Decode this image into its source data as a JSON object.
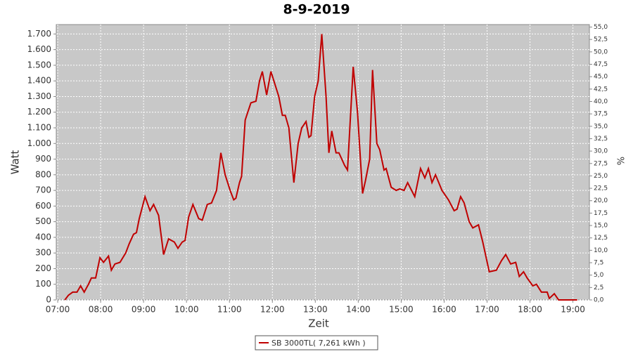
{
  "chart_data": {
    "type": "line",
    "title": "8-9-2019",
    "x_label": "Zeit",
    "y_label": "Watt",
    "y2_label": "%",
    "x": [
      "07:10",
      "07:15",
      "07:21",
      "07:27",
      "07:32",
      "07:37",
      "07:43",
      "07:47",
      "07:53",
      "07:59",
      "08:04",
      "08:11",
      "08:15",
      "08:20",
      "08:27",
      "08:35",
      "08:40",
      "08:46",
      "08:50",
      "08:54",
      "09:02",
      "09:09",
      "09:14",
      "09:21",
      "09:28",
      "09:35",
      "09:43",
      "09:48",
      "09:54",
      "09:58",
      "10:03",
      "10:09",
      "10:17",
      "10:22",
      "10:29",
      "10:35",
      "10:42",
      "10:48",
      "10:54",
      "11:01",
      "11:06",
      "11:09",
      "11:14",
      "11:17",
      "11:22",
      "11:30",
      "11:37",
      "11:42",
      "11:46",
      "11:52",
      "11:58",
      "12:09",
      "12:14",
      "12:18",
      "12:23",
      "12:30",
      "12:36",
      "12:41",
      "12:47",
      "12:51",
      "12:54",
      "12:59",
      "13:04",
      "13:09",
      "13:15",
      "13:19",
      "13:23",
      "13:29",
      "13:33",
      "13:41",
      "13:45",
      "13:53",
      "13:59",
      "14:06",
      "14:10",
      "14:16",
      "14:20",
      "14:26",
      "14:30",
      "14:36",
      "14:39",
      "14:46",
      "14:53",
      "14:58",
      "15:04",
      "15:09",
      "15:19",
      "15:27",
      "15:33",
      "15:38",
      "15:43",
      "15:48",
      "15:57",
      "16:06",
      "16:14",
      "16:18",
      "16:23",
      "16:28",
      "16:35",
      "16:40",
      "16:48",
      "16:54",
      "17:03",
      "17:13",
      "17:20",
      "17:26",
      "17:33",
      "17:40",
      "17:45",
      "17:51",
      "17:56",
      "18:04",
      "18:09",
      "18:16",
      "18:24",
      "18:27",
      "18:34",
      "18:40",
      "19:06"
    ],
    "series": [
      {
        "name": "SB 3000TL( 7,261 kWh )",
        "color": "#c00000",
        "values": [
          0,
          30,
          50,
          50,
          90,
          50,
          100,
          140,
          140,
          270,
          240,
          280,
          190,
          230,
          240,
          300,
          360,
          420,
          430,
          520,
          660,
          570,
          610,
          540,
          290,
          390,
          370,
          330,
          370,
          380,
          530,
          610,
          520,
          510,
          610,
          620,
          700,
          940,
          800,
          700,
          640,
          650,
          750,
          790,
          1150,
          1260,
          1270,
          1400,
          1460,
          1310,
          1460,
          1300,
          1180,
          1180,
          1100,
          750,
          1000,
          1100,
          1140,
          1040,
          1050,
          1300,
          1400,
          1700,
          1300,
          940,
          1080,
          940,
          940,
          860,
          830,
          1490,
          1200,
          680,
          760,
          900,
          1470,
          1000,
          960,
          830,
          840,
          720,
          700,
          710,
          700,
          750,
          660,
          840,
          780,
          840,
          750,
          800,
          700,
          640,
          570,
          580,
          660,
          620,
          500,
          460,
          480,
          370,
          180,
          190,
          250,
          290,
          230,
          240,
          150,
          180,
          140,
          90,
          100,
          50,
          50,
          10,
          40,
          0,
          0
        ]
      }
    ],
    "xlim": [
      "06:58",
      "19:23"
    ],
    "xticks": [
      "07:00",
      "08:00",
      "09:00",
      "10:00",
      "11:00",
      "12:00",
      "13:00",
      "14:00",
      "15:00",
      "16:00",
      "17:00",
      "18:00",
      "19:00"
    ],
    "ylim": [
      0,
      1760
    ],
    "yticks": [
      0,
      100,
      200,
      300,
      400,
      500,
      600,
      700,
      800,
      900,
      {
        "value": 1000,
        "label": "1.000"
      },
      {
        "value": 1100,
        "label": "1.100"
      },
      {
        "value": 1200,
        "label": "1.200"
      },
      {
        "value": 1300,
        "label": "1.300"
      },
      {
        "value": 1400,
        "label": "1.400"
      },
      {
        "value": 1500,
        "label": "1.500"
      },
      {
        "value": 1600,
        "label": "1.600"
      },
      {
        "value": 1700,
        "label": "1.700"
      }
    ],
    "y2lim": [
      0,
      55.5
    ],
    "y2ticks": [
      {
        "value": 0,
        "label": "0,0"
      },
      {
        "value": 2.5,
        "label": "2,5"
      },
      {
        "value": 5,
        "label": "5,0"
      },
      {
        "value": 7.5,
        "label": "7,5"
      },
      {
        "value": 10,
        "label": "10,0"
      },
      {
        "value": 12.5,
        "label": "12,5"
      },
      {
        "value": 15,
        "label": "15,0"
      },
      {
        "value": 17.5,
        "label": "17,5"
      },
      {
        "value": 20,
        "label": "20,0"
      },
      {
        "value": 22.5,
        "label": "22,5"
      },
      {
        "value": 25,
        "label": "25,0"
      },
      {
        "value": 27.5,
        "label": "27,5"
      },
      {
        "value": 30,
        "label": "30,0"
      },
      {
        "value": 32.5,
        "label": "32,5"
      },
      {
        "value": 35,
        "label": "35,0"
      },
      {
        "value": 37.5,
        "label": "37,5"
      },
      {
        "value": 40,
        "label": "40,0"
      },
      {
        "value": 42.5,
        "label": "42,5"
      },
      {
        "value": 45,
        "label": "45,0"
      },
      {
        "value": 47.5,
        "label": "47,5"
      },
      {
        "value": 50,
        "label": "50,0"
      },
      {
        "value": 52.5,
        "label": "52,5"
      },
      {
        "value": 55,
        "label": "55,0"
      }
    ],
    "grid": true,
    "legend": "bottom"
  }
}
